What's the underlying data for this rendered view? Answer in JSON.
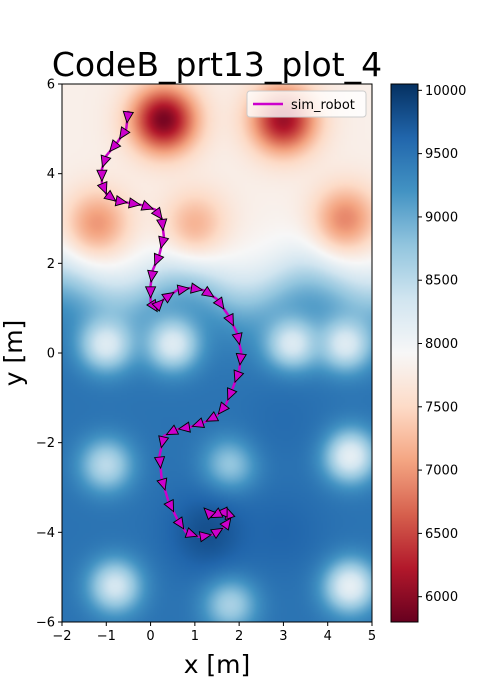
{
  "chart_data": {
    "type": "heatmap",
    "title": "CodeB_prt13_plot_4",
    "xlabel": "x [m]",
    "ylabel": "y [m]",
    "xlim": [
      -2,
      5
    ],
    "ylim": [
      -6,
      6
    ],
    "x_ticks": [
      -2,
      -1,
      0,
      1,
      2,
      3,
      4,
      5
    ],
    "y_ticks": [
      -6,
      -4,
      -2,
      0,
      2,
      4,
      6
    ],
    "x_tick_labels": [
      "−2",
      "−1",
      "0",
      "1",
      "2",
      "3",
      "4",
      "5"
    ],
    "y_tick_labels": [
      "−6",
      "−4",
      "−2",
      "0",
      "2",
      "4",
      "6"
    ],
    "colormap": "RdBu",
    "colorbar": {
      "min": 5800,
      "max": 10050,
      "ticks": [
        6000,
        6500,
        7000,
        7500,
        8000,
        8500,
        9000,
        9500,
        10000
      ],
      "tick_labels": [
        "6000",
        "6500",
        "7000",
        "7500",
        "8000",
        "8500",
        "9000",
        "9500",
        "10000"
      ]
    },
    "grid": false,
    "legend": {
      "position": "top-right",
      "entries": [
        "sim_robot"
      ]
    },
    "series": [
      {
        "name": "sim_robot",
        "color": "#cc00cc",
        "marker": "arrow",
        "x": [
          -0.5,
          -0.55,
          -0.75,
          -1.0,
          -1.1,
          -1.1,
          -1.0,
          -0.8,
          -0.5,
          -0.2,
          0.1,
          0.25,
          0.3,
          0.2,
          0.05,
          0.0,
          0.0,
          0.1,
          0.3,
          0.6,
          0.9,
          1.2,
          1.5,
          1.75,
          1.95,
          2.05,
          2.0,
          1.85,
          1.7,
          1.5,
          1.2,
          0.9,
          0.6,
          0.3,
          0.2,
          0.25,
          0.4,
          0.6,
          0.8,
          1.1,
          1.4,
          1.65,
          1.8,
          1.75,
          1.6,
          1.4,
          1.35
        ],
        "y": [
          5.4,
          5.0,
          4.7,
          4.4,
          4.1,
          3.8,
          3.55,
          3.4,
          3.35,
          3.3,
          3.2,
          3.0,
          2.6,
          2.2,
          1.85,
          1.5,
          1.15,
          1.0,
          1.2,
          1.4,
          1.45,
          1.4,
          1.2,
          0.85,
          0.45,
          0.0,
          -0.4,
          -0.8,
          -1.15,
          -1.4,
          -1.55,
          -1.65,
          -1.7,
          -1.85,
          -2.3,
          -2.8,
          -3.3,
          -3.7,
          -4.0,
          -4.1,
          -4.05,
          -3.9,
          -3.7,
          -3.55,
          -3.55,
          -3.65,
          -3.6
        ]
      }
    ],
    "field": {
      "base_low": 9500,
      "base_high": 7800,
      "transition_y": 1.5,
      "low_spots": [
        {
          "x": 0.3,
          "y": 5.2,
          "value": 5900
        },
        {
          "x": 3.0,
          "y": 5.2,
          "value": 6100
        },
        {
          "x": -1.2,
          "y": 2.9,
          "value": 7000
        },
        {
          "x": 1.0,
          "y": 2.9,
          "value": 7200
        },
        {
          "x": 4.4,
          "y": 3.0,
          "value": 6900
        }
      ],
      "high_spots": [
        {
          "x": -1.0,
          "y": 0.2,
          "value": 8200
        },
        {
          "x": 0.5,
          "y": 0.2,
          "value": 8200
        },
        {
          "x": 3.2,
          "y": 0.2,
          "value": 8200
        },
        {
          "x": 4.4,
          "y": 0.2,
          "value": 8200
        },
        {
          "x": -1.0,
          "y": -2.5,
          "value": 8500
        },
        {
          "x": 1.8,
          "y": -2.5,
          "value": 8700
        },
        {
          "x": 4.5,
          "y": -2.3,
          "value": 8100
        },
        {
          "x": -0.8,
          "y": -5.2,
          "value": 8300
        },
        {
          "x": 1.8,
          "y": -5.6,
          "value": 8600
        },
        {
          "x": 4.5,
          "y": -5.2,
          "value": 8100
        }
      ],
      "deep_spots": [
        {
          "x": 1.3,
          "y": -4.0,
          "value": 10000
        },
        {
          "x": 3.0,
          "y": -4.0,
          "value": 9700
        },
        {
          "x": 3.0,
          "y": -1.5,
          "value": 9600
        }
      ]
    }
  }
}
